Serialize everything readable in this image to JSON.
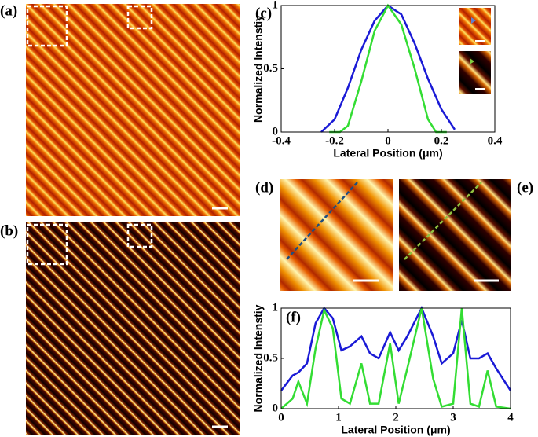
{
  "panels": [
    "(a)",
    "(b)",
    "(c)",
    "(d)",
    "(e)",
    "(f)"
  ],
  "chart_data": [
    {
      "type": "line",
      "xlabel": "Lateral Position (μm)",
      "ylabel": "Normalized Intenstiy",
      "xlim": [
        -0.4,
        0.4
      ],
      "xticks": [
        -0.4,
        -0.2,
        0,
        0.2,
        0.4
      ],
      "ylim": [
        0,
        1
      ],
      "yticks": [
        0,
        0.5,
        1
      ],
      "series": [
        {
          "color": "#1a1ad6",
          "x": [
            -0.25,
            -0.2,
            -0.15,
            -0.1,
            -0.05,
            0,
            0.05,
            0.1,
            0.15,
            0.2,
            0.25
          ],
          "values": [
            0,
            0.1,
            0.35,
            0.65,
            0.88,
            1,
            0.93,
            0.7,
            0.42,
            0.18,
            0.02
          ]
        },
        {
          "color": "#33dd33",
          "x": [
            -0.22,
            -0.18,
            -0.15,
            -0.1,
            -0.05,
            0,
            0.05,
            0.1,
            0.15,
            0.18,
            0.22
          ],
          "values": [
            0,
            0,
            0.05,
            0.4,
            0.8,
            1,
            0.85,
            0.5,
            0.1,
            0,
            0
          ]
        }
      ]
    },
    {
      "type": "line",
      "xlabel": "Lateral Position (μm)",
      "ylabel": "Normalized Intenstiy",
      "xlim": [
        0,
        4
      ],
      "xticks": [
        0,
        1,
        2,
        3,
        4
      ],
      "ylim": [
        0,
        1
      ],
      "yticks": [
        0,
        0.5,
        1
      ],
      "series": [
        {
          "color": "#1a1ad6",
          "x": [
            0,
            0.2,
            0.3,
            0.45,
            0.6,
            0.75,
            0.9,
            1.05,
            1.2,
            1.4,
            1.55,
            1.7,
            1.9,
            2.05,
            2.2,
            2.45,
            2.65,
            2.8,
            3.0,
            3.15,
            3.3,
            3.45,
            3.6,
            3.75,
            4.0
          ],
          "values": [
            0.18,
            0.33,
            0.36,
            0.45,
            0.85,
            1,
            0.9,
            0.58,
            0.62,
            0.72,
            0.55,
            0.5,
            0.76,
            0.58,
            0.72,
            1,
            0.72,
            0.45,
            0.55,
            0.88,
            0.5,
            0.5,
            0.55,
            0.4,
            0.18
          ]
        },
        {
          "color": "#33dd33",
          "x": [
            0,
            0.2,
            0.3,
            0.45,
            0.6,
            0.75,
            0.9,
            1.05,
            1.2,
            1.4,
            1.55,
            1.7,
            1.9,
            2.05,
            2.2,
            2.45,
            2.65,
            2.8,
            3.0,
            3.15,
            3.3,
            3.45,
            3.6,
            3.75,
            4.0
          ],
          "values": [
            0,
            0.1,
            0.27,
            0.05,
            0.6,
            0.98,
            0.8,
            0.1,
            0.05,
            0.45,
            0.05,
            0.05,
            0.65,
            0.05,
            0.4,
            1,
            0.3,
            0.02,
            0.05,
            1,
            0.05,
            0.02,
            0.38,
            0.02,
            0
          ]
        }
      ]
    }
  ]
}
